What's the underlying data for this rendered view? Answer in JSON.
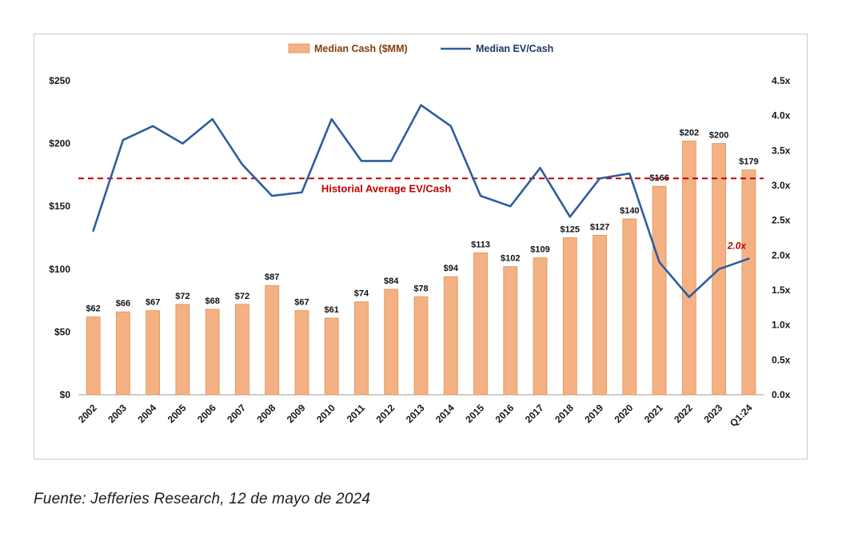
{
  "footer": {
    "text": "Fuente: Jefferies Research, 12 de mayo de 2024"
  },
  "chart_data": {
    "type": "bar",
    "subtype": "bar+line combo, dual axis",
    "grid": false,
    "legend_position": "top-center",
    "categories": [
      "2002",
      "2003",
      "2004",
      "2005",
      "2006",
      "2007",
      "2008",
      "2009",
      "2010",
      "2011",
      "2012",
      "2013",
      "2014",
      "2015",
      "2016",
      "2017",
      "2018",
      "2019",
      "2020",
      "2021",
      "2022",
      "2023",
      "Q1:24"
    ],
    "series": [
      {
        "name": "Median Cash ($MM)",
        "type": "bar",
        "axis": "left",
        "color": "#F4B183",
        "border": "#DD9459",
        "values": [
          62,
          66,
          67,
          72,
          68,
          72,
          87,
          67,
          61,
          74,
          84,
          78,
          94,
          113,
          102,
          109,
          125,
          127,
          140,
          166,
          202,
          200,
          179
        ],
        "labels": [
          "$62",
          "$66",
          "$67",
          "$72",
          "$68",
          "$72",
          "$87",
          "$67",
          "$61",
          "$74",
          "$84",
          "$78",
          "$94",
          "$113",
          "$102",
          "$109",
          "$125",
          "$127",
          "$140",
          "$166",
          "$202",
          "$200",
          "$179"
        ]
      },
      {
        "name": "Median EV/Cash",
        "type": "line",
        "axis": "right",
        "color": "#2F5D9E",
        "values": [
          2.35,
          3.65,
          3.85,
          3.6,
          3.95,
          3.3,
          2.85,
          2.9,
          3.95,
          3.35,
          3.35,
          4.15,
          3.85,
          2.85,
          2.7,
          3.25,
          2.55,
          3.1,
          3.17,
          1.9,
          1.4,
          1.8,
          1.95
        ]
      }
    ],
    "left_axis": {
      "min": 0,
      "max": 250,
      "tick_values": [
        0,
        50,
        100,
        150,
        200,
        250
      ],
      "tick_labels": [
        "$0",
        "$50",
        "$100",
        "$150",
        "$200",
        "$250"
      ]
    },
    "right_axis": {
      "min": 0,
      "max": 4.5,
      "tick_values": [
        0,
        0.5,
        1,
        1.5,
        2,
        2.5,
        3,
        3.5,
        4,
        4.5
      ],
      "tick_labels": [
        "0.0x",
        "0.5x",
        "1.0x",
        "1.5x",
        "2.0x",
        "2.5x",
        "3.0x",
        "3.5x",
        "4.0x",
        "4.5x"
      ]
    },
    "average_line": {
      "value": 3.1,
      "label": "Historial Average EV/Cash",
      "color": "#C00000"
    },
    "annotation": {
      "text": "2.0x",
      "color": "#C00000"
    }
  }
}
